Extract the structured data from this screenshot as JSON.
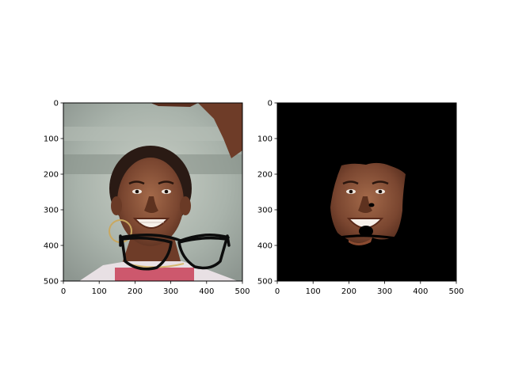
{
  "chart_data": [
    {
      "type": "image",
      "content": "photo of smiling woman with drawn black eyeglasses overlay",
      "xlim": [
        0,
        500
      ],
      "ylim": [
        500,
        0
      ],
      "xticks": [
        0,
        100,
        200,
        300,
        400,
        500
      ],
      "yticks": [
        0,
        100,
        200,
        300,
        400,
        500
      ],
      "title": "",
      "xlabel": "",
      "ylabel": ""
    },
    {
      "type": "image",
      "content": "segmented face region on black background",
      "background_color": "#000000",
      "xlim": [
        0,
        500
      ],
      "ylim": [
        500,
        0
      ],
      "xticks": [
        0,
        100,
        200,
        300,
        400,
        500
      ],
      "yticks": [
        0,
        100,
        200,
        300,
        400,
        500
      ],
      "title": "",
      "xlabel": "",
      "ylabel": ""
    }
  ]
}
